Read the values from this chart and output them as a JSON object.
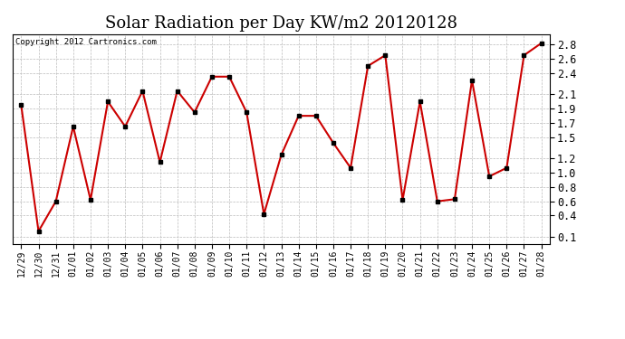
{
  "title": "Solar Radiation per Day KW/m2 20120128",
  "copyright_text": "Copyright 2012 Cartronics.com",
  "dates": [
    "12/29",
    "12/30",
    "12/31",
    "01/01",
    "01/02",
    "01/03",
    "01/04",
    "01/05",
    "01/06",
    "01/07",
    "01/08",
    "01/09",
    "01/10",
    "01/11",
    "01/12",
    "01/13",
    "01/14",
    "01/15",
    "01/16",
    "01/17",
    "01/18",
    "01/19",
    "01/20",
    "01/21",
    "01/22",
    "01/23",
    "01/24",
    "01/25",
    "01/26",
    "01/27",
    "01/28"
  ],
  "values": [
    1.95,
    0.18,
    0.6,
    1.65,
    0.62,
    2.0,
    1.65,
    2.15,
    1.15,
    2.15,
    1.85,
    2.35,
    2.35,
    1.85,
    0.42,
    1.25,
    1.8,
    1.8,
    1.42,
    1.07,
    2.5,
    2.65,
    0.62,
    2.0,
    0.6,
    0.63,
    2.3,
    0.95,
    1.07,
    2.65,
    2.82
  ],
  "line_color": "#cc0000",
  "marker_color": "#000000",
  "bg_color": "#ffffff",
  "grid_color": "#bbbbbb",
  "title_fontsize": 13,
  "yticks": [
    0.1,
    0.4,
    0.6,
    0.8,
    1.0,
    1.2,
    1.5,
    1.7,
    1.9,
    2.1,
    2.4,
    2.6,
    2.8
  ],
  "ylim": [
    0.0,
    2.95
  ],
  "ylabel_fontsize": 8.5,
  "xlabel_fontsize": 7
}
